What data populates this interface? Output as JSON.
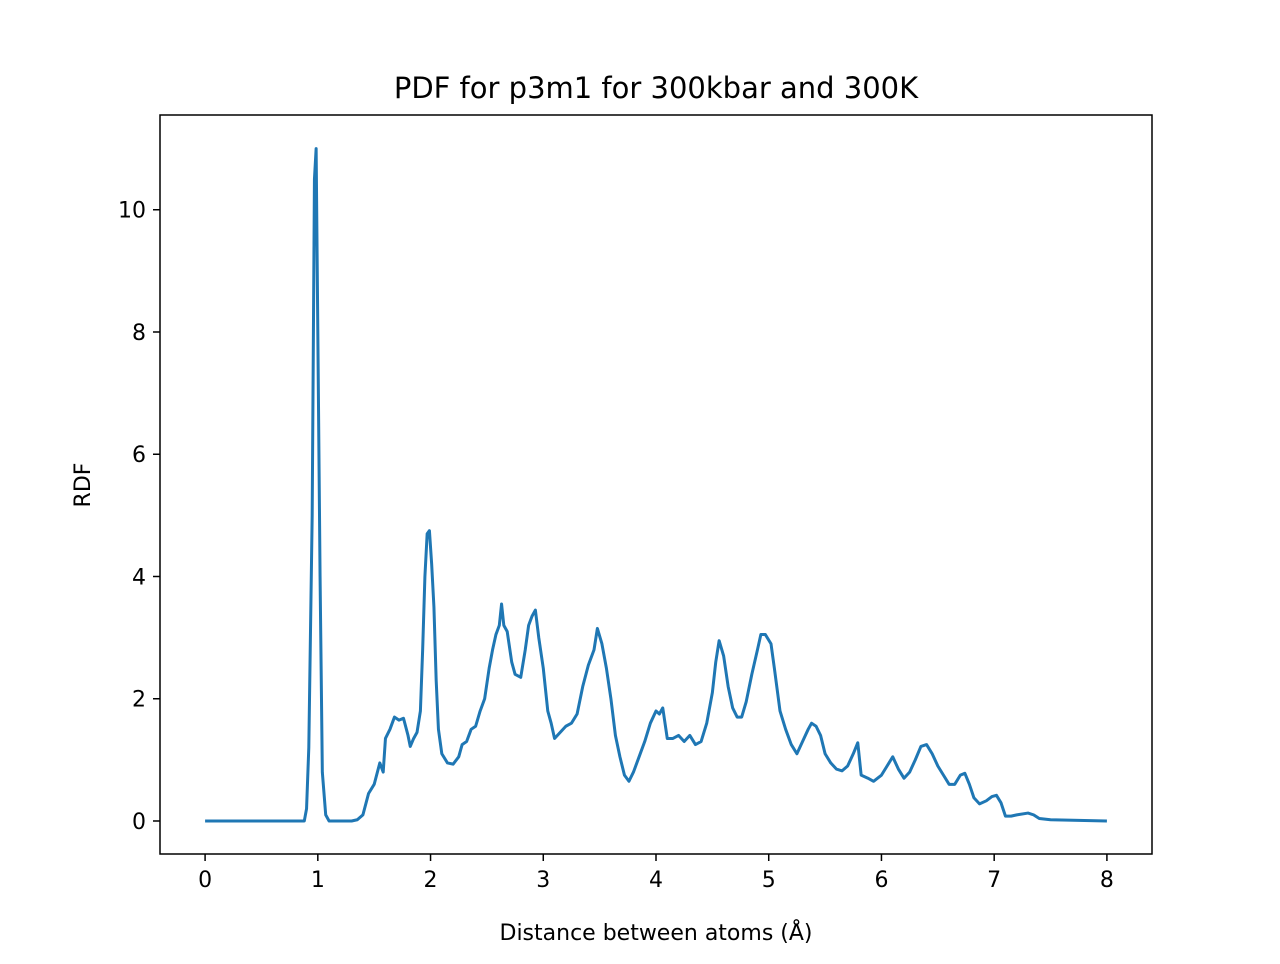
{
  "chart_data": {
    "type": "line",
    "title": "PDF for p3m1 for 300kbar and 300K",
    "xlabel": "Distance between atoms (Å)",
    "ylabel": "RDF",
    "xlim": [
      -0.4,
      8.4
    ],
    "ylim": [
      -0.54,
      11.55
    ],
    "xticks": [
      0,
      1,
      2,
      3,
      4,
      5,
      6,
      7,
      8
    ],
    "yticks": [
      0,
      2,
      4,
      6,
      8,
      10
    ],
    "grid": false,
    "series": [
      {
        "color": "#1f77b4",
        "x": [
          0,
          0.88,
          0.9,
          0.92,
          0.95,
          0.97,
          0.985,
          1.0,
          1.02,
          1.04,
          1.07,
          1.1,
          1.3,
          1.35,
          1.4,
          1.45,
          1.5,
          1.55,
          1.58,
          1.6,
          1.64,
          1.68,
          1.72,
          1.76,
          1.8,
          1.82,
          1.85,
          1.88,
          1.91,
          1.93,
          1.95,
          1.97,
          1.99,
          2.01,
          2.03,
          2.05,
          2.07,
          2.1,
          2.15,
          2.2,
          2.25,
          2.28,
          2.32,
          2.36,
          2.4,
          2.44,
          2.48,
          2.52,
          2.55,
          2.58,
          2.61,
          2.63,
          2.65,
          2.68,
          2.72,
          2.75,
          2.8,
          2.84,
          2.87,
          2.9,
          2.93,
          2.96,
          3.0,
          3.04,
          3.07,
          3.1,
          3.15,
          3.2,
          3.25,
          3.3,
          3.35,
          3.4,
          3.45,
          3.48,
          3.52,
          3.56,
          3.6,
          3.64,
          3.68,
          3.72,
          3.76,
          3.8,
          3.85,
          3.9,
          3.95,
          4.0,
          4.03,
          4.06,
          4.1,
          4.15,
          4.2,
          4.25,
          4.3,
          4.35,
          4.4,
          4.45,
          4.5,
          4.53,
          4.56,
          4.6,
          4.64,
          4.68,
          4.72,
          4.76,
          4.8,
          4.85,
          4.9,
          4.93,
          4.97,
          5.02,
          5.05,
          5.1,
          5.15,
          5.2,
          5.25,
          5.3,
          5.35,
          5.38,
          5.42,
          5.46,
          5.5,
          5.55,
          5.6,
          5.65,
          5.7,
          5.75,
          5.79,
          5.82,
          5.88,
          5.93,
          6.0,
          6.05,
          6.1,
          6.15,
          6.2,
          6.25,
          6.3,
          6.35,
          6.4,
          6.45,
          6.5,
          6.55,
          6.6,
          6.65,
          6.7,
          6.74,
          6.78,
          6.82,
          6.87,
          6.93,
          6.98,
          7.02,
          7.06,
          7.1,
          7.15,
          7.2,
          7.3,
          7.35,
          7.4,
          7.5,
          8.0
        ],
        "values": [
          0,
          0,
          0.2,
          1.2,
          5,
          10.5,
          11,
          8,
          4,
          0.8,
          0.1,
          0,
          0,
          0.02,
          0.1,
          0.45,
          0.6,
          0.95,
          0.8,
          1.35,
          1.5,
          1.7,
          1.65,
          1.68,
          1.4,
          1.22,
          1.35,
          1.45,
          1.8,
          2.8,
          4.0,
          4.7,
          4.75,
          4.2,
          3.5,
          2.3,
          1.5,
          1.1,
          0.95,
          0.93,
          1.05,
          1.25,
          1.3,
          1.5,
          1.55,
          1.8,
          2.0,
          2.5,
          2.8,
          3.05,
          3.2,
          3.55,
          3.2,
          3.1,
          2.6,
          2.4,
          2.35,
          2.8,
          3.2,
          3.35,
          3.45,
          3.0,
          2.5,
          1.8,
          1.6,
          1.35,
          1.45,
          1.55,
          1.6,
          1.75,
          2.2,
          2.55,
          2.8,
          3.15,
          2.9,
          2.5,
          2.0,
          1.4,
          1.05,
          0.75,
          0.65,
          0.8,
          1.05,
          1.3,
          1.6,
          1.8,
          1.75,
          1.85,
          1.35,
          1.35,
          1.4,
          1.3,
          1.4,
          1.25,
          1.3,
          1.6,
          2.1,
          2.6,
          2.95,
          2.7,
          2.2,
          1.85,
          1.7,
          1.7,
          1.95,
          2.4,
          2.8,
          3.05,
          3.05,
          2.9,
          2.5,
          1.8,
          1.5,
          1.25,
          1.1,
          1.3,
          1.5,
          1.6,
          1.55,
          1.4,
          1.1,
          0.95,
          0.85,
          0.82,
          0.9,
          1.1,
          1.28,
          0.75,
          0.7,
          0.65,
          0.75,
          0.9,
          1.05,
          0.85,
          0.7,
          0.8,
          1.0,
          1.22,
          1.25,
          1.1,
          0.9,
          0.75,
          0.6,
          0.6,
          0.75,
          0.78,
          0.6,
          0.38,
          0.28,
          0.33,
          0.4,
          0.42,
          0.3,
          0.08,
          0.08,
          0.1,
          0.13,
          0.1,
          0.04,
          0.02,
          0
        ]
      }
    ]
  }
}
